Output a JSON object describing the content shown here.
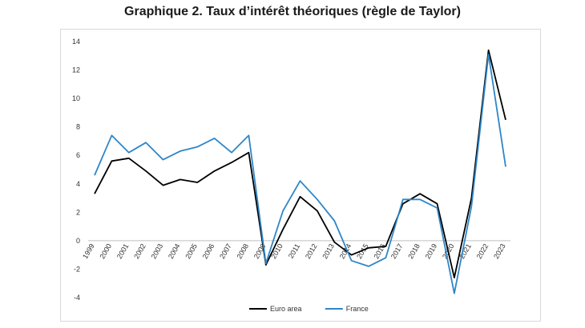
{
  "title": "Graphique 2. Taux d’intérêt théoriques (règle de Taylor)",
  "chart_data": {
    "type": "line",
    "title": "Graphique 2. Taux d’intérêt théoriques (règle de Taylor)",
    "xlabel": "",
    "ylabel": "",
    "categories": [
      "1999",
      "2000",
      "2001",
      "2002",
      "2003",
      "2004",
      "2005",
      "2006",
      "2007",
      "2008",
      "2009",
      "2010",
      "2011",
      "2012",
      "2013",
      "2014",
      "2015",
      "2016",
      "2017",
      "2018",
      "2019",
      "2020",
      "2021",
      "2022",
      "2023"
    ],
    "ylim": [
      -4,
      14
    ],
    "yticks": [
      -4,
      -2,
      0,
      2,
      4,
      6,
      8,
      10,
      12,
      14
    ],
    "grid": false,
    "legend_position": "bottom",
    "series": [
      {
        "name": "Euro area",
        "color": "#000000",
        "values": [
          3.3,
          5.6,
          5.8,
          4.9,
          3.9,
          4.3,
          4.1,
          4.9,
          5.5,
          6.2,
          -1.7,
          0.8,
          3.1,
          2.1,
          -0.1,
          -1.0,
          -0.5,
          -0.4,
          2.6,
          3.3,
          2.6,
          -2.6,
          3.0,
          13.4,
          8.5
        ]
      },
      {
        "name": "France",
        "color": "#2e86c8",
        "values": [
          4.6,
          7.4,
          6.2,
          6.9,
          5.7,
          6.3,
          6.6,
          7.2,
          6.2,
          7.4,
          -1.6,
          2.1,
          4.2,
          2.9,
          1.4,
          -1.4,
          -1.8,
          -1.2,
          2.9,
          2.9,
          2.3,
          -3.7,
          2.4,
          13.1,
          5.2
        ]
      }
    ]
  }
}
